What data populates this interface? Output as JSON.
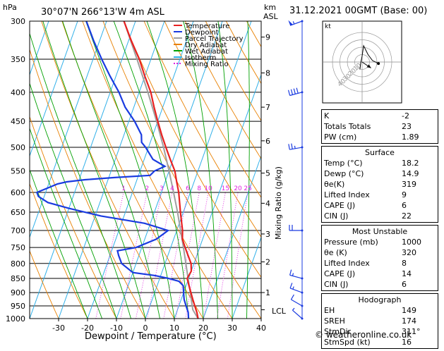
{
  "header": {
    "location": "30°07'N  266°13'W  4m  ASL",
    "datetime": "31.12.2021  00GMT  (Base: 00)",
    "hpa_unit": "hPa",
    "km_unit": "km",
    "asl_unit": "ASL"
  },
  "legend": [
    "Temperature",
    "Dewpoint",
    "Parcel Trajectory",
    "Dry Adiabat",
    "Wet Adiabat",
    "Isotherm",
    "Mixing Ratio"
  ],
  "colors": {
    "temperature": "#e82020",
    "dewpoint": "#1a3be0",
    "parcel": "#a0a0a0",
    "dry_adiabat": "#e88000",
    "wet_adiabat": "#00a000",
    "isotherm": "#30b0e8",
    "mixing_ratio": "#e020e0",
    "wind": "#1a3be0"
  },
  "chart_data": {
    "type": "line",
    "title": "",
    "xlabel": "Dewpoint / Temperature (°C)",
    "ylabel": "",
    "xlim": [
      -40,
      40
    ],
    "pressure_levels": [
      300,
      350,
      400,
      450,
      500,
      550,
      600,
      650,
      700,
      750,
      800,
      850,
      900,
      950,
      1000
    ],
    "x_ticks": [
      -30,
      -20,
      -10,
      0,
      10,
      20,
      30,
      40
    ],
    "km_ticks": [
      {
        "km": "1",
        "p": 900
      },
      {
        "km": "2",
        "p": 795
      },
      {
        "km": "3",
        "p": 710
      },
      {
        "km": "4",
        "p": 627
      },
      {
        "km": "5",
        "p": 555
      },
      {
        "km": "6",
        "p": 487
      },
      {
        "km": "7",
        "p": 425
      },
      {
        "km": "8",
        "p": 370
      },
      {
        "km": "9",
        "p": 320
      }
    ],
    "lcl_label": "LCL",
    "lcl_p": 965,
    "mixing_ratio_axis_label": "Mixing Ratio (g/kg)",
    "mixing_ratio_labels": [
      "1",
      "2",
      "3",
      "4",
      "6",
      "8",
      "10",
      "15",
      "20",
      "25"
    ],
    "mixing_ratio_values": [
      1,
      2,
      3,
      4,
      6,
      8,
      10,
      15,
      20,
      25
    ],
    "series": [
      {
        "name": "Temperature",
        "points": [
          [
            1000,
            18.2
          ],
          [
            975,
            17
          ],
          [
            950,
            15.5
          ],
          [
            925,
            14
          ],
          [
            900,
            12.5
          ],
          [
            875,
            11
          ],
          [
            850,
            9.5
          ],
          [
            825,
            10
          ],
          [
            800,
            9
          ],
          [
            775,
            7
          ],
          [
            750,
            5
          ],
          [
            725,
            3
          ],
          [
            700,
            2
          ],
          [
            650,
            -1
          ],
          [
            600,
            -4
          ],
          [
            575,
            -6
          ],
          [
            550,
            -8
          ],
          [
            525,
            -11
          ],
          [
            500,
            -14
          ],
          [
            475,
            -17
          ],
          [
            450,
            -20
          ],
          [
            425,
            -23
          ],
          [
            400,
            -26
          ],
          [
            375,
            -30
          ],
          [
            350,
            -34
          ],
          [
            325,
            -39
          ],
          [
            300,
            -44
          ]
        ]
      },
      {
        "name": "Dewpoint",
        "points": [
          [
            1000,
            14.9
          ],
          [
            975,
            14
          ],
          [
            950,
            12.5
          ],
          [
            925,
            11
          ],
          [
            900,
            10
          ],
          [
            875,
            9
          ],
          [
            860,
            7
          ],
          [
            850,
            3
          ],
          [
            840,
            -2
          ],
          [
            830,
            -10
          ],
          [
            800,
            -15
          ],
          [
            775,
            -17
          ],
          [
            760,
            -18
          ],
          [
            750,
            -12
          ],
          [
            725,
            -6
          ],
          [
            700,
            -3
          ],
          [
            680,
            -12
          ],
          [
            660,
            -28
          ],
          [
            640,
            -40
          ],
          [
            625,
            -48
          ],
          [
            610,
            -52
          ],
          [
            600,
            -53
          ],
          [
            590,
            -50
          ],
          [
            580,
            -47
          ],
          [
            575,
            -44
          ],
          [
            570,
            -38
          ],
          [
            565,
            -28
          ],
          [
            560,
            -16
          ],
          [
            550,
            -15
          ],
          [
            540,
            -12
          ],
          [
            525,
            -17
          ],
          [
            500,
            -21
          ],
          [
            490,
            -23
          ],
          [
            475,
            -24
          ],
          [
            450,
            -28
          ],
          [
            425,
            -33
          ],
          [
            400,
            -37
          ],
          [
            375,
            -42
          ],
          [
            350,
            -47
          ],
          [
            325,
            -52
          ],
          [
            300,
            -57
          ]
        ]
      },
      {
        "name": "Parcel Trajectory",
        "points": [
          [
            1000,
            18.2
          ],
          [
            965,
            15.3
          ],
          [
            950,
            14.6
          ],
          [
            900,
            12.3
          ],
          [
            850,
            9.8
          ],
          [
            800,
            7.2
          ],
          [
            750,
            4.4
          ],
          [
            700,
            1.3
          ],
          [
            650,
            -2
          ],
          [
            600,
            -5.8
          ],
          [
            550,
            -10
          ],
          [
            500,
            -14.8
          ],
          [
            450,
            -20.4
          ],
          [
            400,
            -27
          ],
          [
            350,
            -34.8
          ],
          [
            300,
            -44
          ]
        ]
      }
    ],
    "wind_barbs": [
      {
        "p": 1000,
        "dir": 311,
        "spd": 5
      },
      {
        "p": 950,
        "dir": 300,
        "spd": 10
      },
      {
        "p": 900,
        "dir": 290,
        "spd": 15
      },
      {
        "p": 850,
        "dir": 285,
        "spd": 15
      },
      {
        "p": 700,
        "dir": 270,
        "spd": 20
      },
      {
        "p": 500,
        "dir": 260,
        "spd": 25
      },
      {
        "p": 400,
        "dir": 255,
        "spd": 40
      },
      {
        "p": 300,
        "dir": 250,
        "spd": 55
      }
    ],
    "hodograph": {
      "unit_label": "kt",
      "ring_labels": [
        "10",
        "20",
        "30",
        "40"
      ],
      "points": [
        [
          -3,
          -10
        ],
        [
          -2,
          -2
        ],
        [
          0,
          8
        ],
        [
          2,
          22
        ],
        [
          8,
          10
        ],
        [
          14,
          2
        ],
        [
          22,
          -2
        ]
      ],
      "storm_motion": [
        12,
        -8
      ]
    }
  },
  "indices": {
    "top": [
      {
        "label": "K",
        "value": "-2"
      },
      {
        "label": "Totals Totals",
        "value": "23"
      },
      {
        "label": "PW (cm)",
        "value": "1.89"
      }
    ],
    "surface": {
      "title": "Surface",
      "rows": [
        {
          "label": "Temp (°C)",
          "value": "18.2"
        },
        {
          "label": "Dewp (°C)",
          "value": "14.9"
        },
        {
          "label": "θe(K)",
          "value": "319"
        },
        {
          "label": "Lifted Index",
          "value": "9"
        },
        {
          "label": "CAPE (J)",
          "value": "6"
        },
        {
          "label": "CIN (J)",
          "value": "22"
        }
      ]
    },
    "most_unstable": {
      "title": "Most Unstable",
      "rows": [
        {
          "label": "Pressure (mb)",
          "value": "1000"
        },
        {
          "label": "θe (K)",
          "value": "320"
        },
        {
          "label": "Lifted Index",
          "value": "8"
        },
        {
          "label": "CAPE (J)",
          "value": "14"
        },
        {
          "label": "CIN (J)",
          "value": "6"
        }
      ]
    },
    "hodograph": {
      "title": "Hodograph",
      "rows": [
        {
          "label": "EH",
          "value": "149"
        },
        {
          "label": "SREH",
          "value": "174"
        },
        {
          "label": "StmDir",
          "value": "311°"
        },
        {
          "label": "StmSpd (kt)",
          "value": "16"
        }
      ]
    }
  },
  "copyright": "© weatheronline.co.uk"
}
